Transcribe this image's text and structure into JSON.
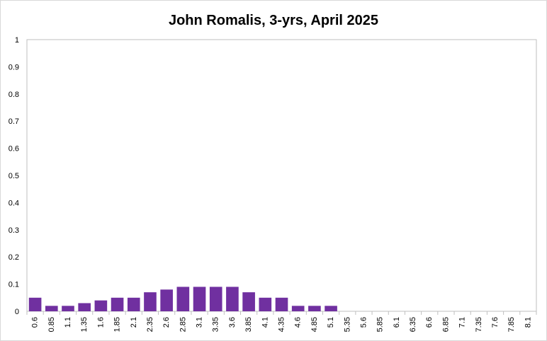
{
  "chart_data": {
    "type": "bar",
    "title": "John Romalis, 3-yrs, April 2025",
    "xlabel": "",
    "ylabel": "",
    "ylim": [
      0,
      1
    ],
    "yticks": [
      "0",
      "0.1",
      "0.2",
      "0.3",
      "0.4",
      "0.5",
      "0.6",
      "0.7",
      "0.8",
      "0.9",
      "1"
    ],
    "grid": false,
    "legend": "none",
    "bar_color": "#7030a0",
    "categories": [
      "0.6",
      "0.85",
      "1.1",
      "1.35",
      "1.6",
      "1.85",
      "2.1",
      "2.35",
      "2.6",
      "2.85",
      "3.1",
      "3.35",
      "3.6",
      "3.85",
      "4.1",
      "4.35",
      "4.6",
      "4.85",
      "5.1",
      "5.35",
      "5.6",
      "5.85",
      "6.1",
      "6.35",
      "6.6",
      "6.85",
      "7.1",
      "7.35",
      "7.6",
      "7.85",
      "8.1"
    ],
    "values": [
      0.05,
      0.02,
      0.02,
      0.03,
      0.04,
      0.05,
      0.05,
      0.07,
      0.08,
      0.09,
      0.09,
      0.09,
      0.09,
      0.07,
      0.05,
      0.05,
      0.02,
      0.02,
      0.02,
      0,
      0,
      0,
      0,
      0,
      0,
      0,
      0,
      0,
      0,
      0,
      0
    ]
  }
}
